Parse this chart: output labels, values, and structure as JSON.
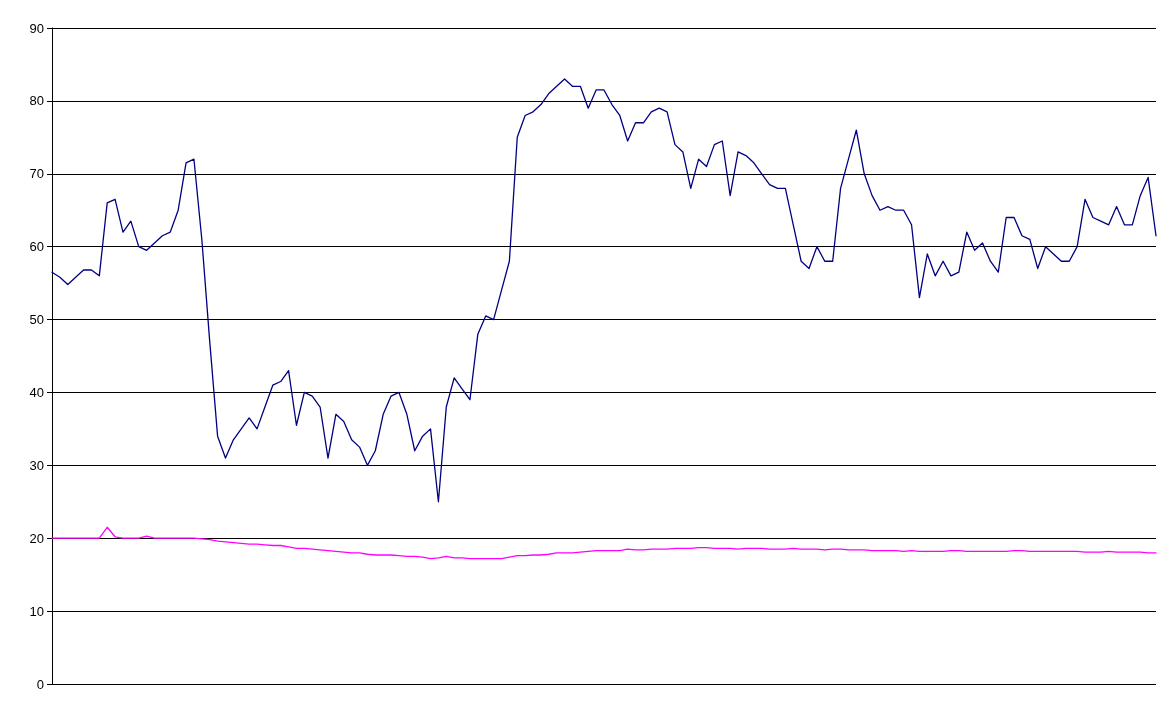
{
  "chart_data": {
    "type": "line",
    "categories": [
      null,
      null,
      null,
      null,
      null,
      null,
      null,
      null,
      null,
      null,
      null,
      null,
      null,
      null,
      null,
      null,
      null,
      null,
      null,
      null,
      null,
      null,
      null,
      null,
      null,
      null,
      null,
      null,
      null,
      null,
      null,
      null,
      null,
      null,
      null,
      null,
      null,
      null,
      null,
      null,
      null,
      null,
      null,
      null,
      null,
      null,
      null,
      null,
      null,
      null,
      null,
      null,
      null,
      null,
      null,
      null,
      null,
      null,
      null,
      null,
      null,
      null,
      null,
      null,
      null,
      null,
      null,
      null,
      null,
      null,
      null,
      null,
      null,
      null,
      null,
      null,
      null,
      null,
      null,
      null,
      null,
      null,
      null,
      null,
      null,
      null,
      null,
      null,
      null,
      null,
      null,
      null,
      null,
      null,
      null,
      null,
      null,
      null,
      null,
      null,
      null,
      null,
      null,
      null,
      null,
      null,
      null,
      null,
      null,
      null,
      null,
      null,
      null,
      null,
      null,
      null,
      null,
      null,
      null,
      null,
      null,
      null,
      null,
      null,
      null,
      null,
      null,
      null,
      null,
      null,
      null,
      null,
      null,
      null,
      null,
      null,
      null,
      null,
      null,
      null,
      null
    ],
    "series": [
      {
        "color": "#000080",
        "values": [
          56.5,
          55.8,
          54.8,
          55.8,
          56.8,
          56.8,
          56,
          66,
          66.5,
          62,
          63.5,
          60,
          59.5,
          60.5,
          61.5,
          62,
          65,
          71.5,
          72,
          61,
          47,
          34,
          31,
          33.5,
          35,
          36.5,
          35,
          38,
          41,
          41.5,
          43,
          35.5,
          40,
          39.5,
          38,
          31,
          37,
          36,
          33.5,
          32.5,
          30,
          32,
          37,
          39.5,
          40,
          37,
          32,
          34,
          35,
          25,
          38,
          42,
          40.5,
          39,
          48,
          50.5,
          50,
          54,
          58,
          75,
          78,
          78.5,
          79.5,
          81,
          82,
          83,
          82,
          82,
          79,
          81.5,
          81.5,
          79.5,
          78,
          74.5,
          77,
          77,
          78.5,
          79,
          78.5,
          74,
          73,
          68,
          72,
          71,
          74,
          74.5,
          67,
          73,
          72.5,
          71.5,
          70,
          68.5,
          68,
          68,
          63,
          58,
          57,
          60,
          58,
          58,
          68,
          72,
          76,
          70,
          67,
          65,
          65.5,
          65,
          65,
          63,
          53,
          59,
          56,
          58,
          56,
          56.5,
          62,
          59.5,
          60.5,
          58,
          56.5,
          64,
          64,
          61.5,
          61,
          57,
          60,
          59,
          58,
          58,
          60,
          66.5,
          64,
          63.5,
          63,
          65.5,
          63,
          63,
          67,
          69.5,
          61.5
        ]
      },
      {
        "color": "#ff00ff",
        "values": [
          20,
          20,
          20,
          20,
          20,
          20,
          20,
          21.5,
          20.2,
          20,
          20,
          20,
          20.3,
          20,
          20,
          20,
          20,
          20,
          20,
          19.9,
          19.8,
          19.6,
          19.5,
          19.4,
          19.3,
          19.2,
          19.2,
          19.1,
          19,
          19,
          18.8,
          18.6,
          18.6,
          18.5,
          18.4,
          18.3,
          18.2,
          18.1,
          18,
          18,
          17.8,
          17.7,
          17.7,
          17.7,
          17.6,
          17.5,
          17.5,
          17.4,
          17.2,
          17.3,
          17.5,
          17.3,
          17.3,
          17.2,
          17.2,
          17.2,
          17.2,
          17.2,
          17.4,
          17.6,
          17.6,
          17.7,
          17.7,
          17.8,
          18,
          18,
          18,
          18.1,
          18.2,
          18.3,
          18.3,
          18.3,
          18.3,
          18.5,
          18.4,
          18.4,
          18.5,
          18.5,
          18.5,
          18.6,
          18.6,
          18.6,
          18.7,
          18.7,
          18.6,
          18.6,
          18.6,
          18.5,
          18.6,
          18.6,
          18.6,
          18.5,
          18.5,
          18.5,
          18.6,
          18.5,
          18.5,
          18.5,
          18.4,
          18.5,
          18.5,
          18.4,
          18.4,
          18.4,
          18.3,
          18.3,
          18.3,
          18.3,
          18.2,
          18.3,
          18.2,
          18.2,
          18.2,
          18.2,
          18.3,
          18.3,
          18.2,
          18.2,
          18.2,
          18.2,
          18.2,
          18.2,
          18.3,
          18.3,
          18.2,
          18.2,
          18.2,
          18.2,
          18.2,
          18.2,
          18.2,
          18.1,
          18.1,
          18.1,
          18.2,
          18.1,
          18.1,
          18.1,
          18.1,
          18,
          18
        ]
      }
    ],
    "ylim": [
      0,
      90
    ],
    "yticks": [
      0,
      10,
      20,
      30,
      40,
      50,
      60,
      70,
      80,
      90
    ],
    "grid": "y",
    "tick_labels": "y",
    "line_style": "solid"
  }
}
